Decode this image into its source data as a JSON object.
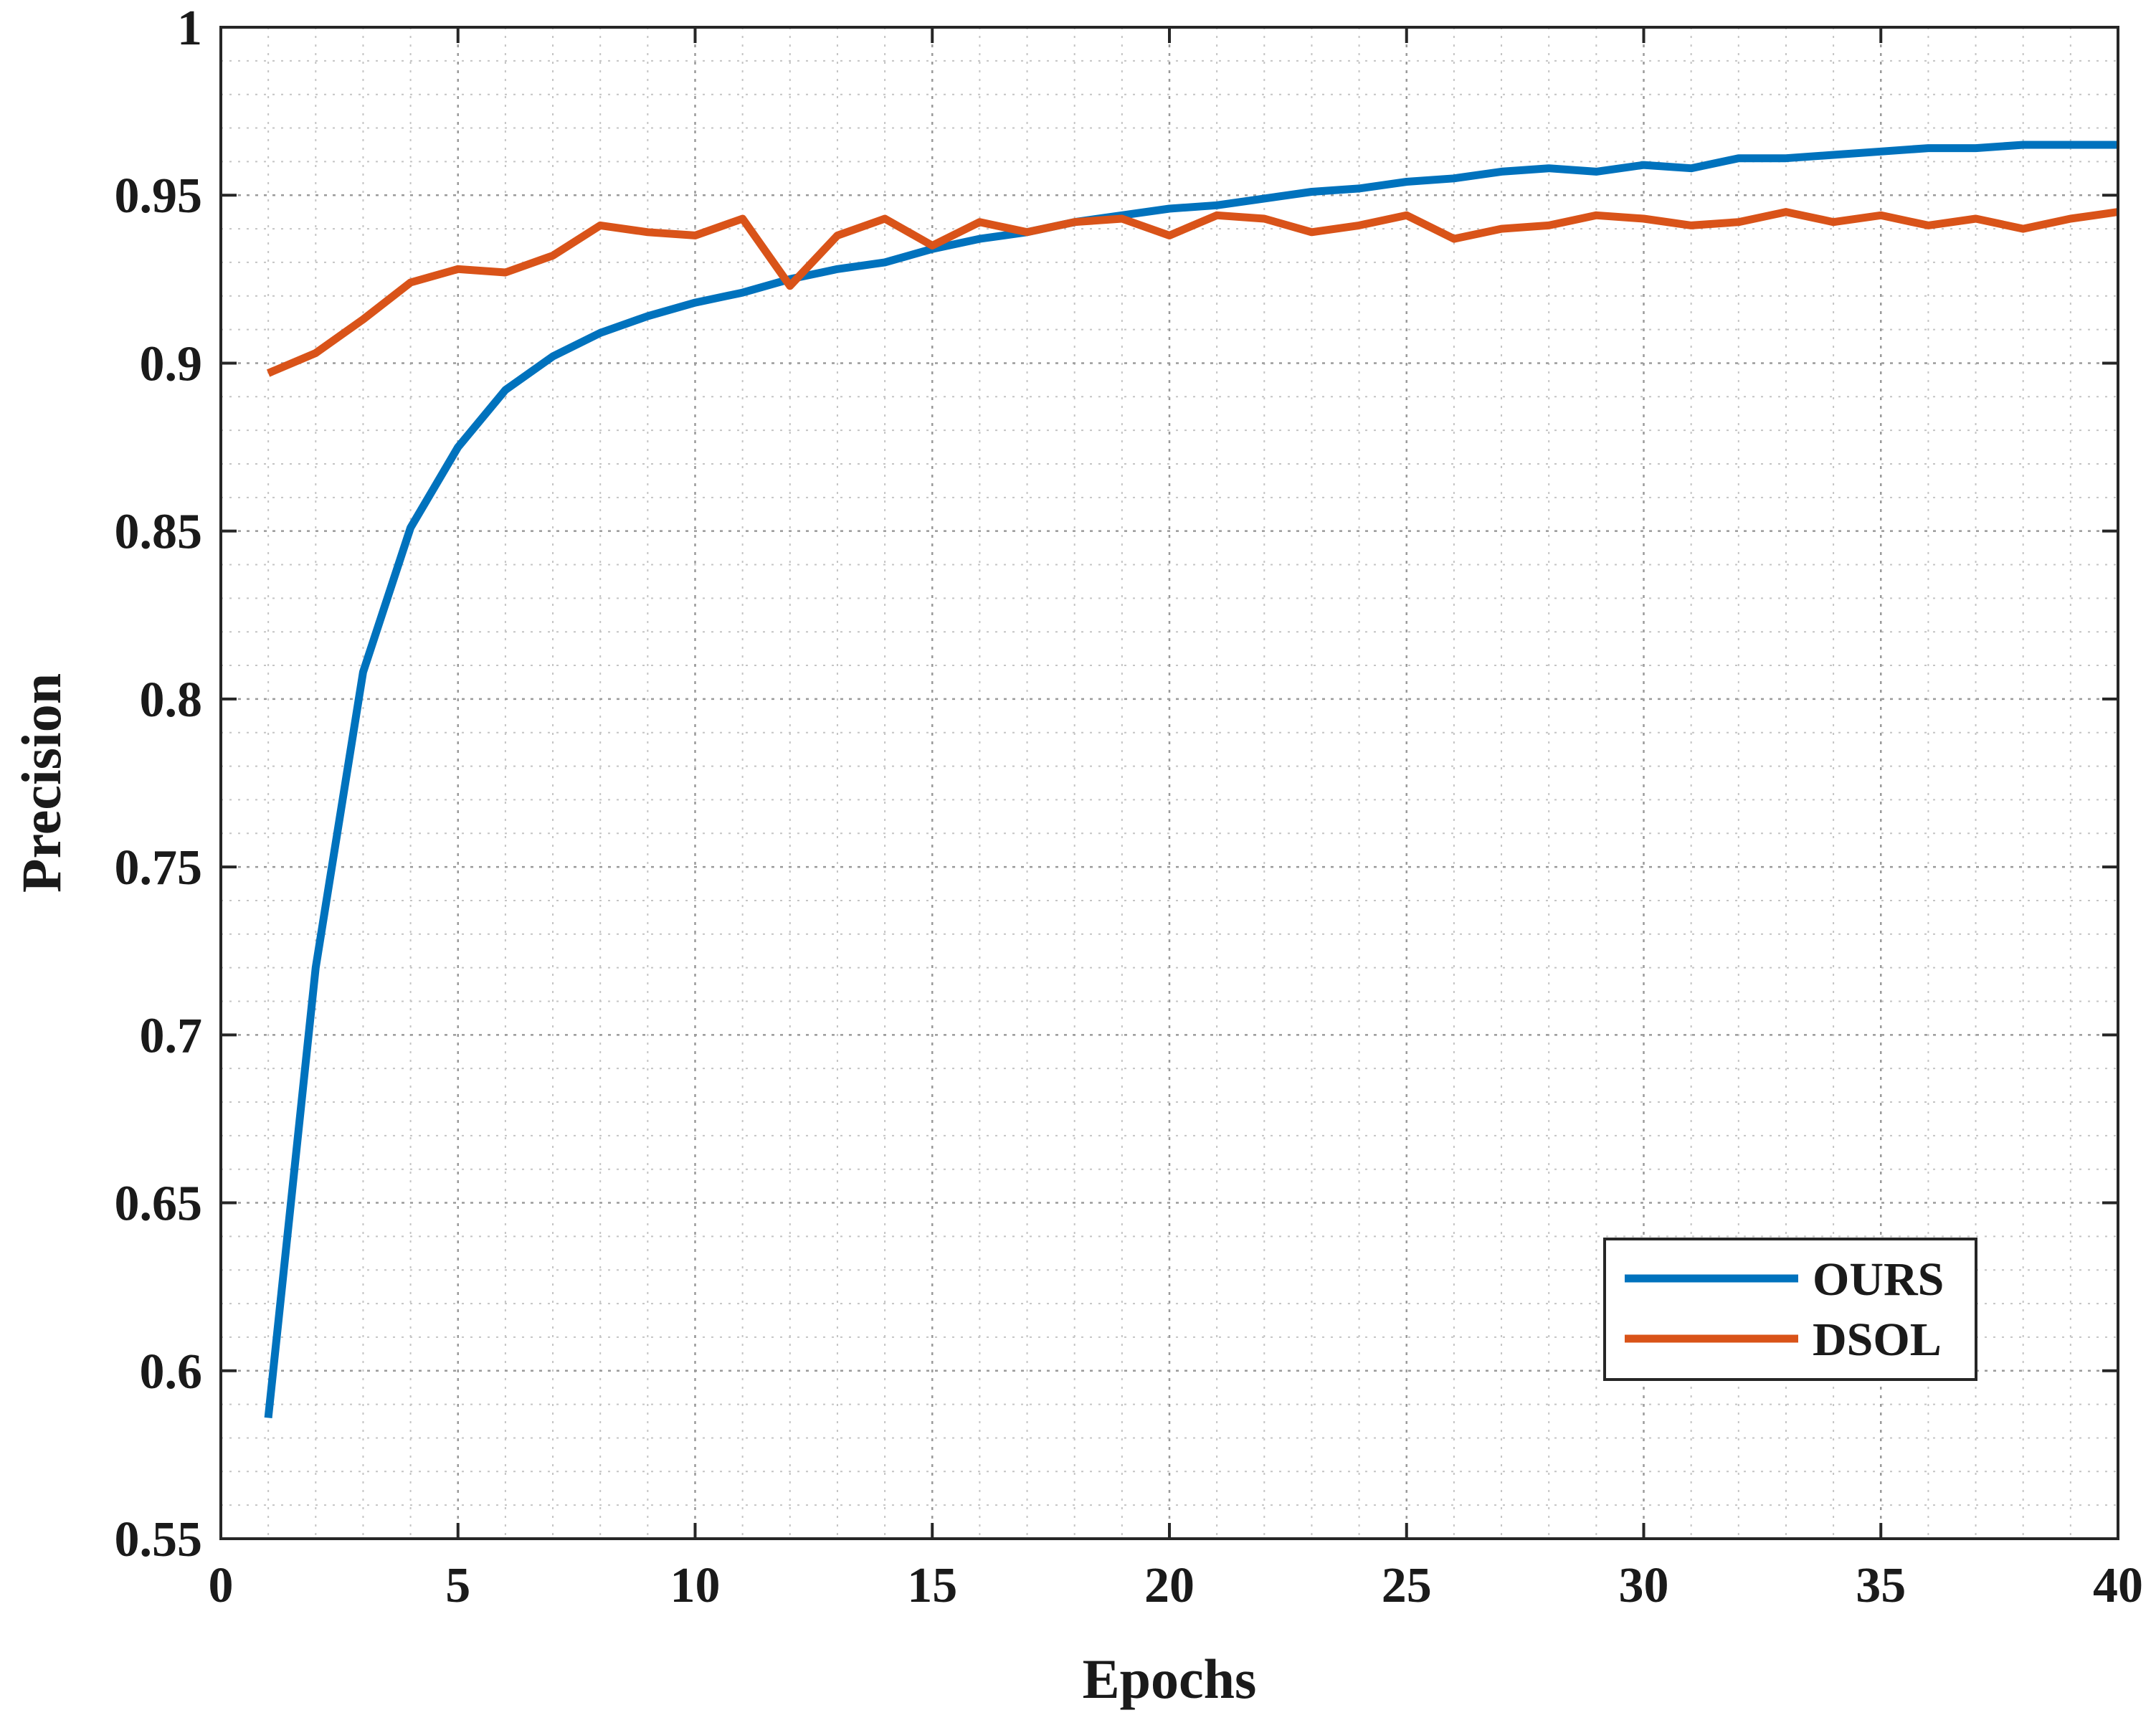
{
  "chart_data": {
    "type": "line",
    "xlabel": "Epochs",
    "ylabel": "Precision",
    "xlim": [
      0,
      40
    ],
    "ylim": [
      0.55,
      1
    ],
    "xticks": [
      0,
      5,
      10,
      15,
      20,
      25,
      30,
      35,
      40
    ],
    "xtick_labels": [
      "0",
      "5",
      "10",
      "15",
      "20",
      "25",
      "30",
      "35",
      "40"
    ],
    "yticks": [
      0.55,
      0.6,
      0.65,
      0.7,
      0.75,
      0.8,
      0.85,
      0.9,
      0.95,
      1
    ],
    "ytick_labels": [
      "0.55",
      "0.6",
      "0.65",
      "0.7",
      "0.75",
      "0.8",
      "0.85",
      "0.9",
      "0.95",
      "1"
    ],
    "grid": true,
    "minor_grid": true,
    "legend_position": "bottom-right",
    "x": [
      1,
      2,
      3,
      4,
      5,
      6,
      7,
      8,
      9,
      10,
      11,
      12,
      13,
      14,
      15,
      16,
      17,
      18,
      19,
      20,
      21,
      22,
      23,
      24,
      25,
      26,
      27,
      28,
      29,
      30,
      31,
      32,
      33,
      34,
      35,
      36,
      37,
      38,
      39,
      40
    ],
    "series": [
      {
        "name": "OURS",
        "color": "#0072BD",
        "values": [
          0.586,
          0.72,
          0.808,
          0.851,
          0.875,
          0.892,
          0.902,
          0.909,
          0.914,
          0.918,
          0.921,
          0.925,
          0.928,
          0.93,
          0.934,
          0.937,
          0.939,
          0.942,
          0.944,
          0.946,
          0.947,
          0.949,
          0.951,
          0.952,
          0.954,
          0.955,
          0.957,
          0.958,
          0.957,
          0.959,
          0.958,
          0.961,
          0.961,
          0.962,
          0.963,
          0.964,
          0.964,
          0.965,
          0.965,
          0.965
        ]
      },
      {
        "name": "DSOL",
        "color": "#D95319",
        "values": [
          0.897,
          0.903,
          0.913,
          0.924,
          0.928,
          0.927,
          0.932,
          0.941,
          0.939,
          0.938,
          0.943,
          0.923,
          0.938,
          0.943,
          0.935,
          0.942,
          0.939,
          0.942,
          0.943,
          0.938,
          0.944,
          0.943,
          0.939,
          0.941,
          0.944,
          0.937,
          0.94,
          0.941,
          0.944,
          0.943,
          0.941,
          0.942,
          0.945,
          0.942,
          0.944,
          0.941,
          0.943,
          0.94,
          0.943,
          0.945
        ]
      }
    ]
  }
}
